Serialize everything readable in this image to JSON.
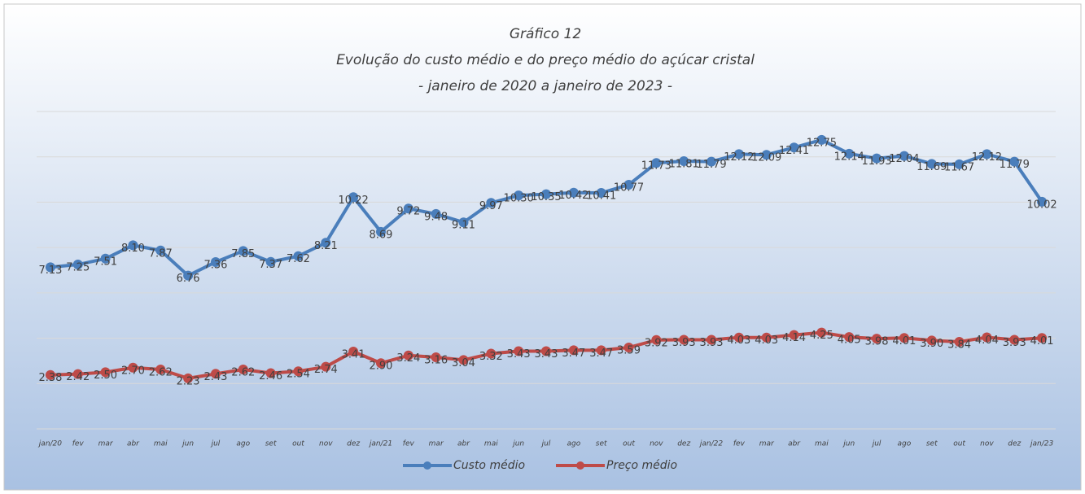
{
  "chart_data": {
    "type": "line",
    "title": "Gráfico 12",
    "subtitle": [
      "Evolução do custo médio e do preço médio do açúcar cristal",
      "- janeiro de 2020 a janeiro de 2023 -"
    ],
    "categories": [
      "jan/20",
      "fev",
      "mar",
      "abr",
      "mai",
      "jun",
      "jul",
      "ago",
      "set",
      "out",
      "nov",
      "dez",
      "jan/21",
      "fev",
      "mar",
      "abr",
      "mai",
      "jun",
      "jul",
      "ago",
      "set",
      "out",
      "nov",
      "dez",
      "jan/22",
      "fev",
      "mar",
      "abr",
      "mai",
      "jun",
      "jul",
      "ago",
      "set",
      "out",
      "nov",
      "dez",
      "jan/23"
    ],
    "series": [
      {
        "name": "Custo médio",
        "color": "#4a7ebb",
        "values": [
          7.13,
          7.25,
          7.51,
          8.1,
          7.87,
          6.76,
          7.36,
          7.85,
          7.37,
          7.62,
          8.21,
          10.22,
          8.69,
          9.72,
          9.48,
          9.11,
          9.97,
          10.3,
          10.35,
          10.42,
          10.41,
          10.77,
          11.73,
          11.81,
          11.79,
          12.12,
          12.09,
          12.41,
          12.75,
          12.14,
          11.93,
          12.04,
          11.69,
          11.67,
          12.12,
          11.79,
          10.02
        ],
        "value_labels": [
          "7.13",
          "7.25",
          "7.51",
          "8.10",
          "7.87",
          "6.76",
          "7.36",
          "7.85",
          "7.37",
          "7.62",
          "8.21",
          "10.22",
          "8.69",
          "9.72",
          "9.48",
          "9.11",
          "9.97",
          "10.30",
          "10.35",
          "10.42",
          "10.41",
          "10.77",
          "11.73",
          "11.81",
          "11.79",
          "12.12",
          "12.09",
          "12.41",
          "12.75",
          "12.14",
          "11.93",
          "12.04",
          "11.69",
          "11.67",
          "12.12",
          "11.79",
          "10.02"
        ]
      },
      {
        "name": "Preço médio",
        "color": "#be4b48",
        "values": [
          2.38,
          2.42,
          2.5,
          2.7,
          2.62,
          2.23,
          2.43,
          2.62,
          2.46,
          2.54,
          2.74,
          3.41,
          2.9,
          3.24,
          3.16,
          3.04,
          3.32,
          3.43,
          3.43,
          3.47,
          3.47,
          3.59,
          3.92,
          3.93,
          3.93,
          4.03,
          4.03,
          4.14,
          4.25,
          4.05,
          3.98,
          4.01,
          3.9,
          3.84,
          4.04,
          3.93,
          4.01
        ],
        "value_labels": [
          "2.38",
          "2.42",
          "2.50",
          "2.70",
          "2.62",
          "2.23",
          "2.43",
          "2.62",
          "2.46",
          "2.54",
          "2.74",
          "3.41",
          "2.90",
          "3.24",
          "3.16",
          "3.04",
          "3.32",
          "3.43",
          "3.43",
          "3.47",
          "3.47",
          "3.59",
          "3.92",
          "3.93",
          "3.93",
          "4.03",
          "4.03",
          "4.14",
          "4.25",
          "4.05",
          "3.98",
          "4.01",
          "3.90",
          "3.84",
          "4.04",
          "3.93",
          "4.01"
        ]
      }
    ],
    "ylim": [
      0,
      14
    ],
    "yticks": [
      0,
      2,
      4,
      6,
      8,
      10,
      12,
      14
    ],
    "grid": true,
    "legend": "bottom"
  }
}
